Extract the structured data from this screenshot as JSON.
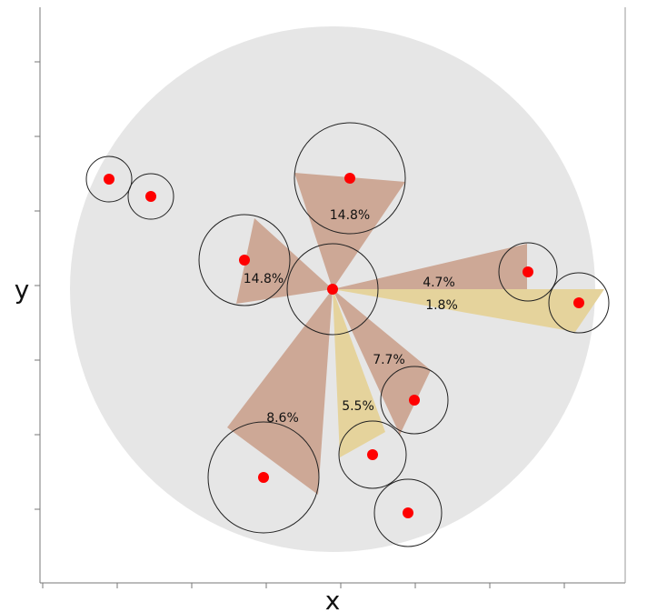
{
  "axes": {
    "xlabel": "x",
    "ylabel": "y"
  },
  "colors": {
    "background": "#ffffff",
    "region": "#e6e6e6",
    "wedge_brown": "#cda896",
    "wedge_yellow": "#e5d39c",
    "point": "#ff0000",
    "circle_stroke": "#222222",
    "axis": "#777777"
  },
  "wedges": [
    {
      "label": "14.8%",
      "tone": "brown"
    },
    {
      "label": "14.8%",
      "tone": "brown"
    },
    {
      "label": "4.7%",
      "tone": "brown"
    },
    {
      "label": "1.8%",
      "tone": "yellow"
    },
    {
      "label": "7.7%",
      "tone": "brown"
    },
    {
      "label": "5.5%",
      "tone": "yellow"
    },
    {
      "label": "8.6%",
      "tone": "brown"
    }
  ]
}
